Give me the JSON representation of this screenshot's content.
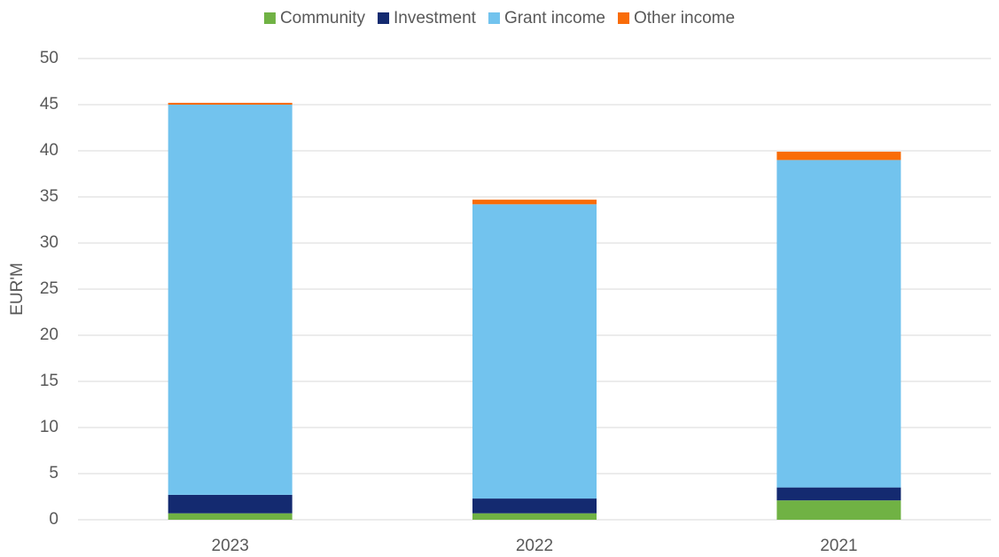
{
  "chart_data": {
    "type": "stacked_bar",
    "y_label": "EUR'M",
    "categories": [
      "2023",
      "2022",
      "2021"
    ],
    "series": [
      {
        "name": "Community",
        "color": "#70b244",
        "values": [
          0.7,
          0.7,
          2.1
        ]
      },
      {
        "name": "Investment",
        "color": "#142a70",
        "values": [
          2.0,
          1.6,
          1.4
        ]
      },
      {
        "name": "Grant income",
        "color": "#72c3ee",
        "values": [
          42.3,
          31.9,
          35.5
        ]
      },
      {
        "name": "Other income",
        "color": "#f96c08",
        "values": [
          0.2,
          0.5,
          0.9
        ]
      }
    ],
    "ylim": [
      0,
      50
    ],
    "yticks": [
      0,
      5,
      10,
      15,
      20,
      25,
      30,
      35,
      40,
      45,
      50
    ],
    "grid": true,
    "legend": "top"
  }
}
